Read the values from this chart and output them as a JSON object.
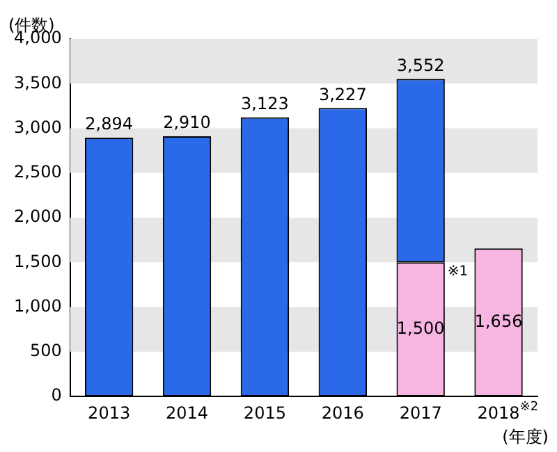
{
  "chart_data": {
    "type": "bar",
    "stacked": true,
    "ylabel": "(件数)",
    "xlabel": "(年度)",
    "categories": [
      "2013",
      "2014",
      "2015",
      "2016",
      "2017",
      "2018$^{※2}$"
    ],
    "series": [
      {
        "color": "#f7b5e1",
        "values": [
          null,
          null,
          null,
          null,
          1500,
          1656
        ],
        "value_labels": [
          null,
          null,
          null,
          null,
          "1,500",
          "1,656"
        ]
      },
      {
        "color": "#2a6ae8",
        "values": [
          2894,
          2910,
          3123,
          3227,
          2052,
          null
        ]
      }
    ],
    "totals": [
      "2,894",
      "2,910",
      "3,123",
      "3,227",
      "3,552",
      null
    ],
    "ylim": [
      0,
      4000
    ],
    "yticks": [
      0,
      500,
      {
        "value": 1000,
        "label": "1,000"
      },
      {
        "value": 1500,
        "label": "1,500"
      },
      {
        "value": 2000,
        "label": "2,000"
      },
      {
        "value": 2500,
        "label": "2,500"
      },
      {
        "value": 3000,
        "label": "3,000"
      },
      {
        "value": 3500,
        "label": "3,500"
      },
      {
        "value": 4000,
        "label": "4,000"
      }
    ],
    "bands": [
      {
        "axis": "y",
        "from": 500,
        "to": 1000,
        "color": "#e6e6e6"
      },
      {
        "axis": "y",
        "from": 1500,
        "to": 2000,
        "color": "#e6e6e6"
      },
      {
        "axis": "y",
        "from": 2500,
        "to": 3000,
        "color": "#e6e6e6"
      },
      {
        "axis": "y",
        "from": 3500,
        "to": 4000,
        "color": "#e6e6e6"
      }
    ],
    "annotations": [
      {
        "text": "※1",
        "x": "2017",
        "y": 1500
      }
    ],
    "grid": false,
    "legend": false
  }
}
